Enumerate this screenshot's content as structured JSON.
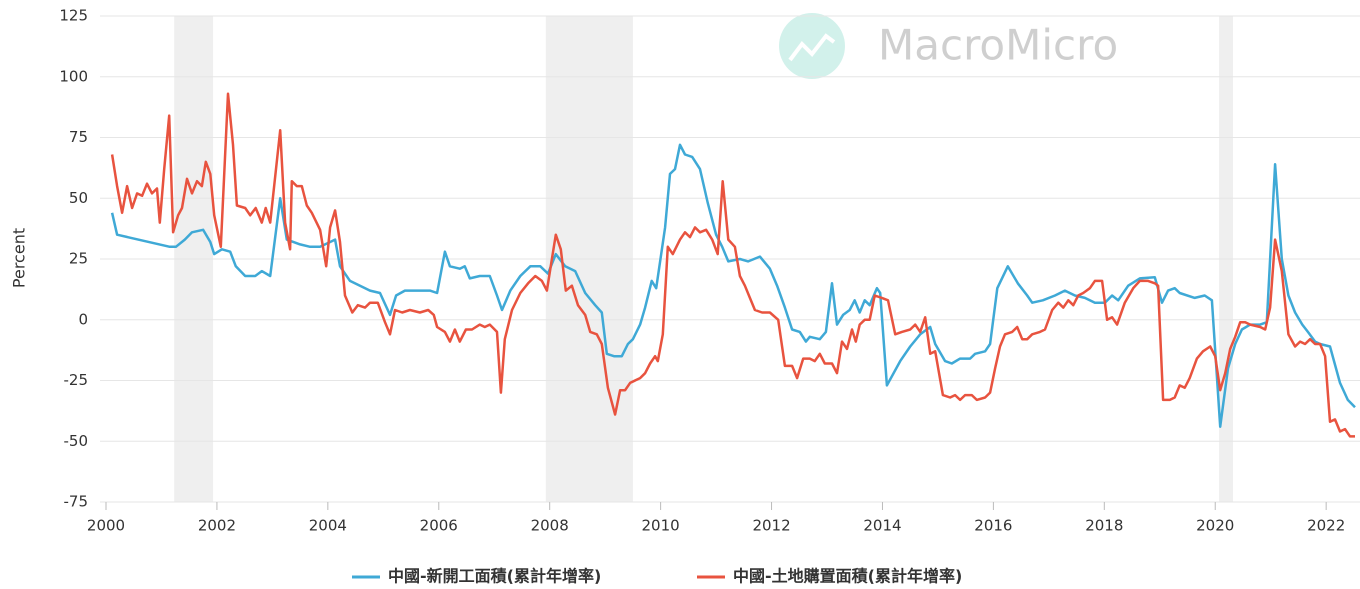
{
  "chart_data": {
    "type": "line",
    "watermark": "MacroMicro",
    "ylabel": "Percent",
    "xlim": [
      2000,
      2022.52
    ],
    "xticks": [
      2000,
      2002,
      2004,
      2006,
      2008,
      2010,
      2012,
      2014,
      2016,
      2018,
      2020,
      2022
    ],
    "ylim": [
      -75,
      125
    ],
    "yticks": [
      -75,
      -50,
      -25,
      0,
      25,
      50,
      75,
      100,
      125
    ],
    "grid": true,
    "legend": "bottom",
    "shaded_ranges": [
      [
        2001.23,
        2001.93
      ],
      [
        2007.93,
        2009.5
      ],
      [
        2020.07,
        2020.32
      ]
    ],
    "series": [
      {
        "name": "中國-新開工面積(累計年增率)",
        "color": "#3fa9d6",
        "x": [
          2000.11,
          2000.2,
          2001.15,
          2001.26,
          2001.42,
          2001.55,
          2001.75,
          2001.88,
          2001.95,
          2002.09,
          2002.24,
          2002.34,
          2002.51,
          2002.69,
          2002.81,
          2002.96,
          2003.14,
          2003.26,
          2003.5,
          2003.68,
          2003.86,
          2004.13,
          2004.22,
          2004.4,
          2004.58,
          2004.76,
          2004.94,
          2005.12,
          2005.23,
          2005.39,
          2005.66,
          2005.84,
          2005.97,
          2006.11,
          2006.2,
          2006.38,
          2006.47,
          2006.56,
          2006.74,
          2006.92,
          2007.05,
          2007.14,
          2007.29,
          2007.47,
          2007.65,
          2007.83,
          2007.97,
          2008.11,
          2008.28,
          2008.46,
          2008.64,
          2008.82,
          2008.94,
          2009.03,
          2009.16,
          2009.3,
          2009.41,
          2009.5,
          2009.63,
          2009.72,
          2009.84,
          2009.92,
          2010.08,
          2010.17,
          2010.26,
          2010.35,
          2010.44,
          2010.57,
          2010.71,
          2010.85,
          2011.0,
          2011.11,
          2011.22,
          2011.43,
          2011.58,
          2011.79,
          2011.97,
          2012.1,
          2012.24,
          2012.37,
          2012.51,
          2012.62,
          2012.69,
          2012.87,
          2012.98,
          2013.09,
          2013.18,
          2013.29,
          2013.41,
          2013.5,
          2013.59,
          2013.68,
          2013.77,
          2013.9,
          2013.96,
          2014.08,
          2014.32,
          2014.5,
          2014.68,
          2014.86,
          2014.95,
          2015.13,
          2015.25,
          2015.4,
          2015.58,
          2015.67,
          2015.85,
          2015.94,
          2016.07,
          2016.26,
          2016.44,
          2016.61,
          2016.7,
          2016.89,
          2017.11,
          2017.29,
          2017.47,
          2017.65,
          2017.83,
          2018.01,
          2018.14,
          2018.25,
          2018.43,
          2018.64,
          2018.91,
          2019.04,
          2019.15,
          2019.27,
          2019.36,
          2019.63,
          2019.81,
          2019.94,
          2020.09,
          2020.23,
          2020.36,
          2020.48,
          2020.63,
          2020.81,
          2020.93,
          2021.08,
          2021.2,
          2021.32,
          2021.44,
          2021.57,
          2021.67,
          2021.8,
          2021.89,
          2022.07,
          2022.25,
          2022.39,
          2022.52
        ],
        "values": [
          44,
          35,
          30,
          30,
          33,
          36,
          37,
          32,
          27,
          29,
          28,
          22,
          18,
          18,
          20,
          18,
          50,
          33,
          31,
          30,
          30,
          33,
          22,
          16,
          14,
          12,
          11,
          2,
          10,
          12,
          12,
          12,
          11,
          28,
          22,
          21,
          22,
          17,
          18,
          18,
          10,
          4,
          12,
          18,
          22,
          22,
          19,
          27,
          22,
          20,
          11,
          6,
          3,
          -14,
          -15,
          -15,
          -10,
          -8,
          -2,
          5,
          16,
          13,
          38,
          60,
          62,
          72,
          68,
          67,
          62,
          48,
          35,
          30,
          24,
          25,
          24,
          26,
          21,
          14,
          5,
          -4,
          -5,
          -9,
          -7,
          -8,
          -5,
          15,
          -2,
          2,
          4,
          8,
          3,
          8,
          6,
          13,
          11,
          -27,
          -17,
          -11,
          -6,
          -3,
          -10,
          -17,
          -18,
          -16,
          -16,
          -14,
          -13,
          -10,
          13,
          22,
          15,
          10,
          7,
          8,
          10,
          12,
          10,
          9,
          7,
          7,
          10,
          8,
          14,
          17,
          17.5,
          7,
          12,
          13,
          11,
          9,
          10,
          8,
          -44,
          -20,
          -10,
          -4,
          -2,
          -2,
          -1,
          64,
          25,
          10,
          3,
          -2,
          -5,
          -9,
          -10,
          -11,
          -26,
          -33,
          -36
        ]
      },
      {
        "name": "中國-土地購置面積(累計年增率)",
        "color": "#e8533f",
        "x": [
          2000.11,
          2000.2,
          2000.29,
          2000.38,
          2000.47,
          2000.56,
          2000.65,
          2000.74,
          2000.83,
          2000.92,
          2000.97,
          2001.05,
          2001.14,
          2001.21,
          2001.3,
          2001.37,
          2001.46,
          2001.55,
          2001.64,
          2001.73,
          2001.8,
          2001.88,
          2001.95,
          2002.07,
          2002.2,
          2002.29,
          2002.36,
          2002.51,
          2002.6,
          2002.7,
          2002.81,
          2002.88,
          2002.96,
          2003.14,
          2003.23,
          2003.32,
          2003.35,
          2003.44,
          2003.53,
          2003.62,
          2003.71,
          2003.86,
          2003.97,
          2004.04,
          2004.13,
          2004.22,
          2004.31,
          2004.44,
          2004.54,
          2004.67,
          2004.76,
          2004.9,
          2005.03,
          2005.12,
          2005.21,
          2005.34,
          2005.48,
          2005.66,
          2005.81,
          2005.91,
          2005.97,
          2006.11,
          2006.2,
          2006.29,
          2006.38,
          2006.49,
          2006.6,
          2006.74,
          2006.83,
          2006.92,
          2007.05,
          2007.12,
          2007.19,
          2007.32,
          2007.47,
          2007.61,
          2007.74,
          2007.86,
          2007.95,
          2008.04,
          2008.11,
          2008.2,
          2008.29,
          2008.4,
          2008.51,
          2008.64,
          2008.73,
          2008.85,
          2008.94,
          2009.05,
          2009.18,
          2009.27,
          2009.36,
          2009.45,
          2009.63,
          2009.72,
          2009.81,
          2009.9,
          2009.95,
          2010.04,
          2010.13,
          2010.22,
          2010.35,
          2010.44,
          2010.53,
          2010.62,
          2010.71,
          2010.82,
          2010.93,
          2011.03,
          2011.12,
          2011.22,
          2011.34,
          2011.43,
          2011.52,
          2011.61,
          2011.7,
          2011.83,
          2011.97,
          2012.12,
          2012.24,
          2012.37,
          2012.46,
          2012.57,
          2012.69,
          2012.78,
          2012.87,
          2012.96,
          2013.09,
          2013.18,
          2013.27,
          2013.36,
          2013.45,
          2013.52,
          2013.59,
          2013.68,
          2013.77,
          2013.86,
          2013.99,
          2014.1,
          2014.23,
          2014.35,
          2014.5,
          2014.59,
          2014.68,
          2014.77,
          2014.86,
          2014.95,
          2015.09,
          2015.22,
          2015.31,
          2015.4,
          2015.49,
          2015.61,
          2015.7,
          2015.85,
          2015.94,
          2016.03,
          2016.12,
          2016.21,
          2016.34,
          2016.43,
          2016.52,
          2016.61,
          2016.7,
          2016.84,
          2016.93,
          2017.06,
          2017.17,
          2017.26,
          2017.35,
          2017.44,
          2017.53,
          2017.62,
          2017.74,
          2017.83,
          2017.96,
          2018.05,
          2018.14,
          2018.23,
          2018.37,
          2018.52,
          2018.64,
          2018.79,
          2018.91,
          2018.97,
          2019.06,
          2019.18,
          2019.27,
          2019.36,
          2019.45,
          2019.54,
          2019.67,
          2019.78,
          2019.91,
          2020.0,
          2020.09,
          2020.18,
          2020.27,
          2020.36,
          2020.45,
          2020.54,
          2020.63,
          2020.81,
          2020.9,
          2020.99,
          2021.08,
          2021.2,
          2021.32,
          2021.44,
          2021.53,
          2021.62,
          2021.71,
          2021.8,
          2021.89,
          2021.98,
          2022.07,
          2022.16,
          2022.25,
          2022.34,
          2022.43,
          2022.52
        ],
        "values": [
          68,
          55,
          44,
          55,
          46,
          52,
          51,
          56,
          52,
          54,
          40,
          62,
          84,
          36,
          43,
          46,
          58,
          52,
          57,
          55,
          65,
          60,
          43,
          30,
          93,
          72,
          47,
          46,
          43,
          46,
          40,
          46,
          40,
          78,
          40,
          29,
          57,
          55,
          55,
          47,
          44,
          37,
          22,
          38,
          45,
          32,
          10,
          3,
          6,
          5,
          7,
          7,
          -1,
          -6,
          4,
          3,
          4,
          3,
          4,
          2,
          -3,
          -5,
          -9,
          -4,
          -9,
          -4,
          -4,
          -2,
          -3,
          -2,
          -5,
          -30,
          -8,
          4,
          11,
          15,
          18,
          16,
          12,
          25,
          35,
          29,
          12,
          14,
          6,
          2,
          -5,
          -6,
          -10,
          -28,
          -39,
          -29,
          -29,
          -26,
          -24,
          -22,
          -18,
          -15,
          -17,
          -6,
          30,
          27,
          33,
          36,
          34,
          38,
          36,
          37,
          33,
          27,
          57,
          33,
          30,
          18,
          14,
          9,
          4,
          3,
          3,
          0,
          -19,
          -19,
          -24,
          -16,
          -16,
          -17,
          -14,
          -18,
          -18,
          -22,
          -9,
          -12,
          -4,
          -9,
          -2,
          0,
          0,
          10,
          9,
          8,
          -6,
          -5,
          -4,
          -2,
          -5,
          1,
          -14,
          -13,
          -31,
          -32,
          -31,
          -33,
          -31,
          -31,
          -33,
          -32,
          -30,
          -20,
          -11,
          -6,
          -5,
          -3,
          -8,
          -8,
          -6,
          -5,
          -4,
          4,
          7,
          5,
          8,
          6,
          10,
          11,
          13,
          16,
          16,
          0,
          1,
          -2,
          7,
          13,
          16,
          16,
          15,
          14,
          -33,
          -33,
          -32,
          -27,
          -28,
          -24,
          -16,
          -13,
          -11,
          -15,
          -29,
          -22,
          -12,
          -7,
          -1,
          -1,
          -2,
          -3,
          -4,
          5,
          33,
          20,
          -6,
          -11,
          -9,
          -10,
          -8,
          -10,
          -10,
          -15,
          -42,
          -41,
          -46,
          -45,
          -48,
          -48
        ]
      }
    ]
  }
}
